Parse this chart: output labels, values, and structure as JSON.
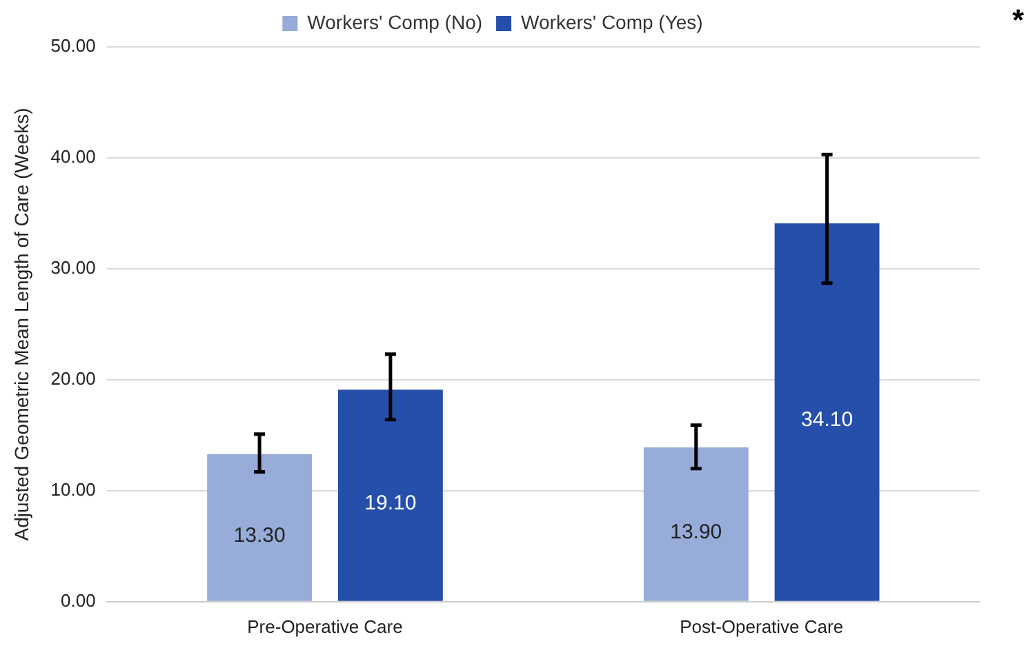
{
  "chart_data": {
    "type": "bar",
    "ylabel": "Adjusted Geometric Mean Length of Care (Weeks)",
    "categories": [
      "Pre-Operative Care",
      "Post-Operative Care"
    ],
    "series": [
      {
        "name": "Workers' Comp (No)",
        "color": "#97acd9",
        "values": [
          13.3,
          13.9
        ],
        "errors": [
          [
            11.7,
            15.1
          ],
          [
            12.0,
            15.9
          ]
        ],
        "value_labels": [
          "13.30",
          "13.90"
        ]
      },
      {
        "name": "Workers' Comp (Yes)",
        "color": "#264fac",
        "values": [
          19.1,
          34.1
        ],
        "errors": [
          [
            16.4,
            22.3
          ],
          [
            28.7,
            40.3
          ]
        ],
        "value_labels": [
          "19.10",
          "34.10"
        ]
      }
    ],
    "ylim": [
      0,
      50
    ],
    "yticks": [
      {
        "value": 0,
        "label": "0.00"
      },
      {
        "value": 10,
        "label": "10.00"
      },
      {
        "value": 20,
        "label": "20.00"
      },
      {
        "value": 30,
        "label": "30.00"
      },
      {
        "value": 40,
        "label": "40.00"
      },
      {
        "value": 50,
        "label": "50.00"
      }
    ],
    "grid": "y",
    "legend": "top",
    "annotations": [
      "*"
    ]
  }
}
